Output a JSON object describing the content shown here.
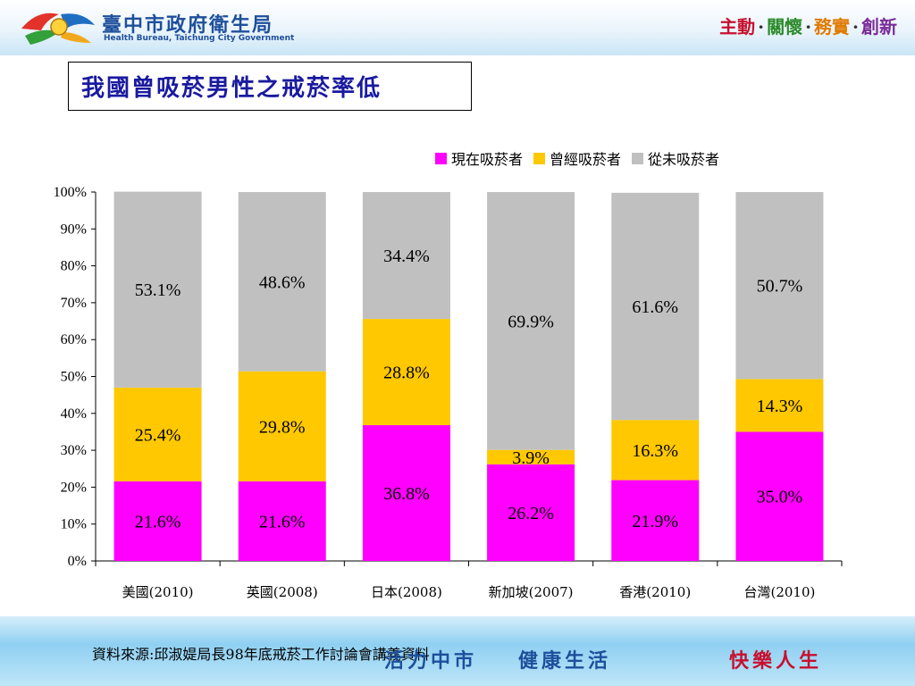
{
  "header": {
    "org_name_zh": "臺中市政府衛生局",
    "org_name_en": "Health Bureau, Taichung City Government",
    "slogan_parts": [
      "主動",
      "關懷",
      "務實",
      "創新"
    ],
    "slogan_sep": "·",
    "slogan_colors": [
      "#c8102e",
      "#2a8a2a",
      "#e07b00",
      "#7a2a9a"
    ]
  },
  "title": "我國曾吸菸男性之戒菸率低",
  "legend": [
    {
      "label": "現在吸菸者",
      "color": "#ff00ff"
    },
    {
      "label": "曾經吸菸者",
      "color": "#ffc800"
    },
    {
      "label": "從未吸菸者",
      "color": "#c0c0c0"
    }
  ],
  "chart_data": {
    "type": "bar",
    "stacked": true,
    "categories": [
      "美國(2010)",
      "英國(2008)",
      "日本(2008)",
      "新加坡(2007)",
      "香港(2010)",
      "台灣(2010)"
    ],
    "series": [
      {
        "name": "現在吸菸者",
        "color": "#ff00ff",
        "values": [
          21.6,
          21.6,
          36.8,
          26.2,
          21.9,
          35.0
        ],
        "labels": [
          "21.6%",
          "21.6%",
          "36.8%",
          "26.2%",
          "21.9%",
          "35.0%"
        ]
      },
      {
        "name": "曾經吸菸者",
        "color": "#ffc800",
        "values": [
          25.4,
          29.8,
          28.8,
          3.9,
          16.3,
          14.3
        ],
        "labels": [
          "25.4%",
          "29.8%",
          "28.8%",
          "3.9%",
          "16.3%",
          "14.3%"
        ]
      },
      {
        "name": "從未吸菸者",
        "color": "#c0c0c0",
        "values": [
          53.1,
          48.6,
          34.4,
          69.9,
          61.6,
          50.7
        ],
        "labels": [
          "53.1%",
          "48.6%",
          "34.4%",
          "69.9%",
          "61.6%",
          "50.7%"
        ]
      }
    ],
    "yticks": [
      "0%",
      "10%",
      "20%",
      "30%",
      "40%",
      "50%",
      "60%",
      "70%",
      "80%",
      "90%",
      "100%"
    ],
    "ylim": [
      0,
      100
    ],
    "grid": false,
    "legend_position": "top-right"
  },
  "footer": {
    "source": "資料來源:邱淑媞局長98年底戒菸工作討論會講義資料",
    "brand_left": "活力中市",
    "brand_mid": "健康生活",
    "brand_right": "快樂人生"
  }
}
